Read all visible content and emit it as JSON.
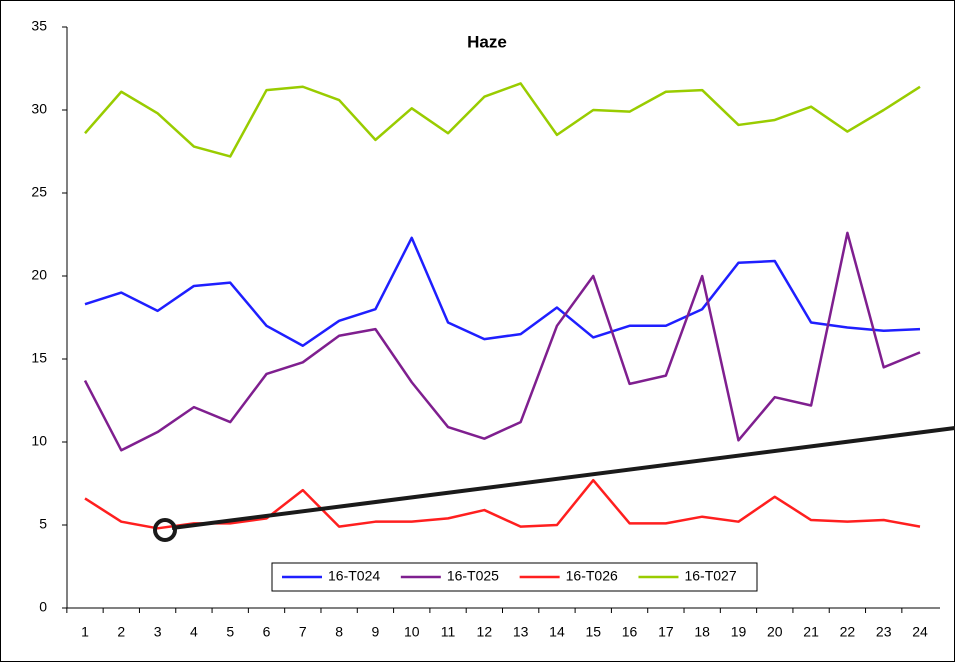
{
  "chart_data": {
    "type": "line",
    "title": "Haze",
    "categories": [
      1,
      2,
      3,
      4,
      5,
      6,
      7,
      8,
      9,
      10,
      11,
      12,
      13,
      14,
      15,
      16,
      17,
      18,
      19,
      20,
      21,
      22,
      23,
      24
    ],
    "series": [
      {
        "name": "16-T024",
        "color": "#1f1fff",
        "values": [
          18.3,
          19.0,
          17.9,
          19.4,
          19.6,
          17.0,
          15.8,
          17.3,
          18.0,
          22.3,
          17.2,
          16.2,
          16.5,
          18.1,
          16.3,
          17.0,
          17.0,
          18.0,
          20.8,
          20.9,
          17.2,
          16.9,
          16.7,
          16.8
        ]
      },
      {
        "name": "16-T025",
        "color": "#7f1f8f",
        "values": [
          13.7,
          9.5,
          10.6,
          12.1,
          11.2,
          14.1,
          14.8,
          16.4,
          16.8,
          13.6,
          10.9,
          10.2,
          11.2,
          17.0,
          20.0,
          13.5,
          14.0,
          20.0,
          10.1,
          12.7,
          12.2,
          22.6,
          14.5,
          15.4
        ]
      },
      {
        "name": "16-T026",
        "color": "#ff1f1f",
        "values": [
          6.6,
          5.2,
          4.8,
          5.1,
          5.1,
          5.4,
          7.1,
          4.9,
          5.2,
          5.2,
          5.4,
          5.9,
          4.9,
          5.0,
          7.7,
          5.1,
          5.1,
          5.5,
          5.2,
          6.7,
          5.3,
          5.2,
          5.3,
          4.9
        ]
      },
      {
        "name": "16-T027",
        "color": "#99cc00",
        "values": [
          28.6,
          31.1,
          29.8,
          27.8,
          27.2,
          31.2,
          31.4,
          30.6,
          28.2,
          30.1,
          28.6,
          30.8,
          31.6,
          28.5,
          30.0,
          29.9,
          31.1,
          31.2,
          29.1,
          29.4,
          30.2,
          28.7,
          30.0,
          31.4
        ]
      }
    ],
    "ylim": [
      0,
      35
    ],
    "yticks": [
      0,
      5,
      10,
      15,
      20,
      25,
      30,
      35
    ],
    "legend": "bottom"
  }
}
